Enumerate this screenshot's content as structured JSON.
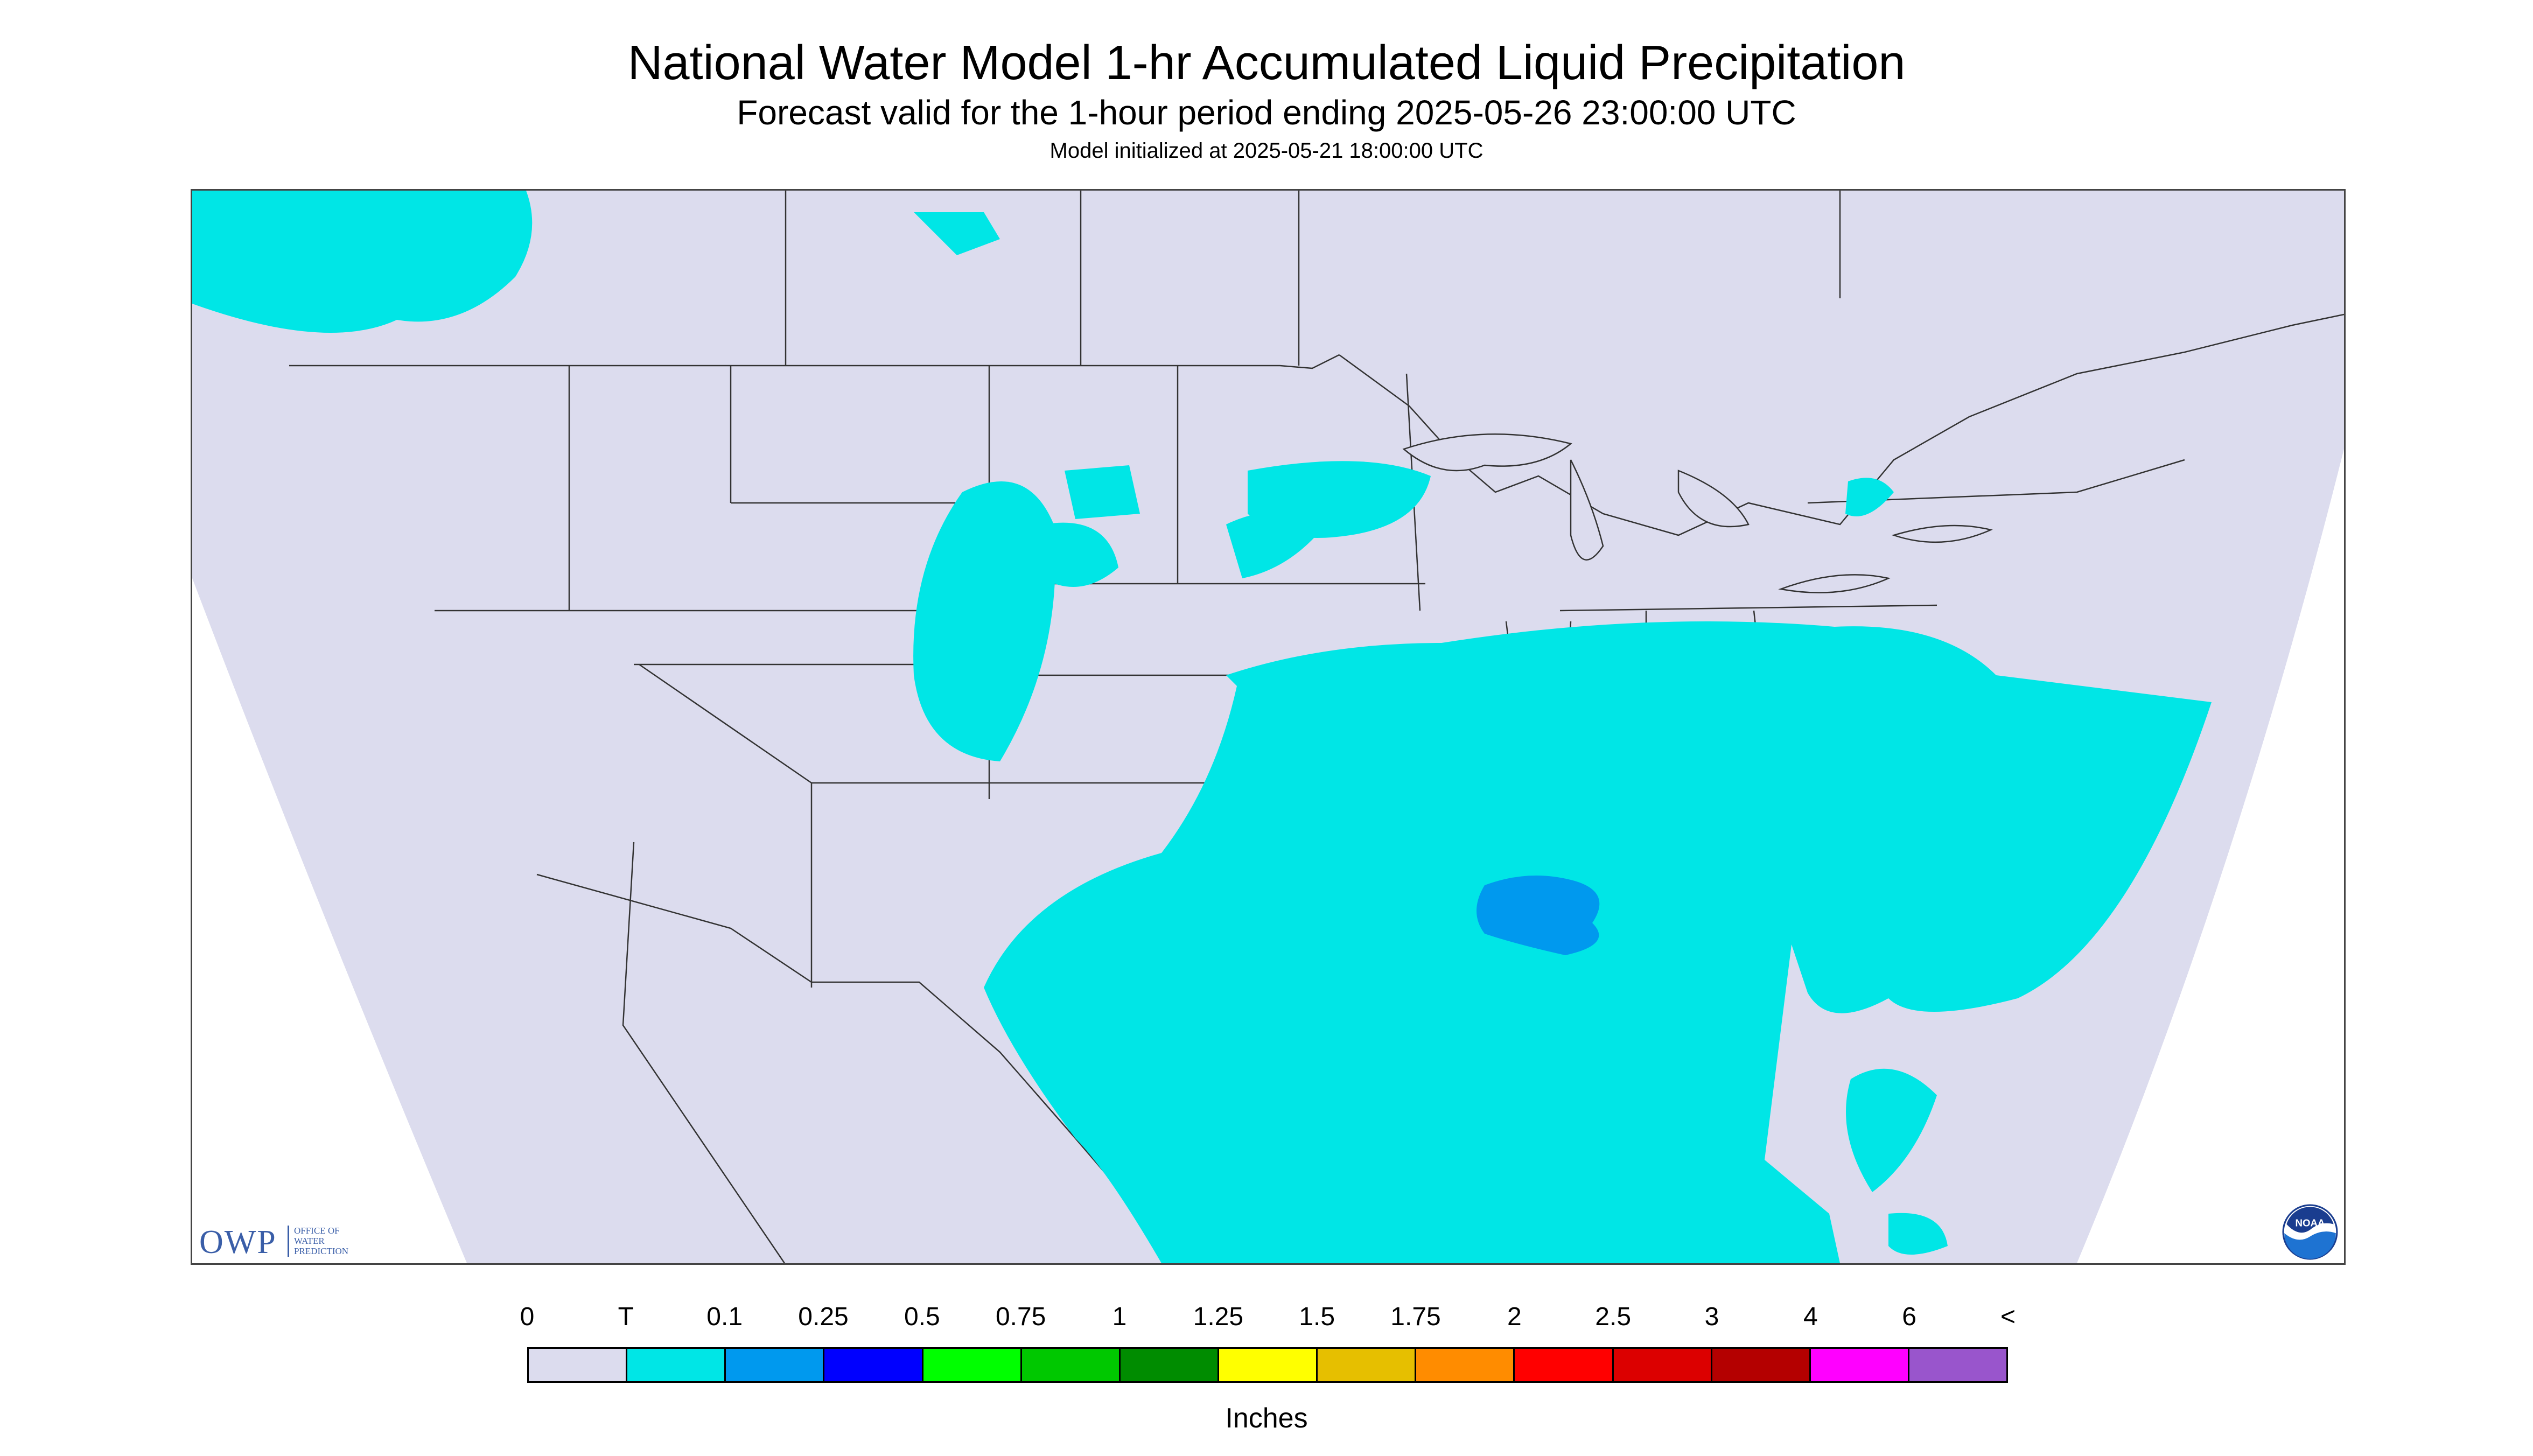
{
  "title": "National Water Model 1-hr Accumulated Liquid Precipitation",
  "subtitle": "Forecast valid for the 1-hour period ending 2025-05-26 23:00:00 UTC",
  "init_line": "Model initialized at 2025-05-21 18:00:00 UTC",
  "logo_left": {
    "mark": "OWP",
    "name_lines": [
      "OFFICE OF",
      "WATER",
      "PREDICTION"
    ]
  },
  "logo_right": {
    "mark": "NOAA",
    "icon": "noaa-seal-icon"
  },
  "colors": {
    "out_of_domain": "#ffffff",
    "no_precip": "#dcdcee",
    "trace": "#00e6e6",
    "light_blue": "#0099ee",
    "state_lines": "#333333"
  },
  "legend": {
    "units": "Inches",
    "tick_labels": [
      "0",
      "T",
      "0.1",
      "0.25",
      "0.5",
      "0.75",
      "1",
      "1.25",
      "1.5",
      "1.75",
      "2",
      "2.5",
      "3",
      "4",
      "6",
      "<"
    ],
    "bins": [
      {
        "color": "#dcdcee"
      },
      {
        "color": "#00e6e6"
      },
      {
        "color": "#0099ee"
      },
      {
        "color": "#0000ff"
      },
      {
        "color": "#00ff00"
      },
      {
        "color": "#00c800"
      },
      {
        "color": "#008c00"
      },
      {
        "color": "#ffff00"
      },
      {
        "color": "#e6bf00"
      },
      {
        "color": "#ff8c00"
      },
      {
        "color": "#ff0000"
      },
      {
        "color": "#dc0000"
      },
      {
        "color": "#b40000"
      },
      {
        "color": "#ff00ff"
      },
      {
        "color": "#9955cc"
      }
    ]
  }
}
